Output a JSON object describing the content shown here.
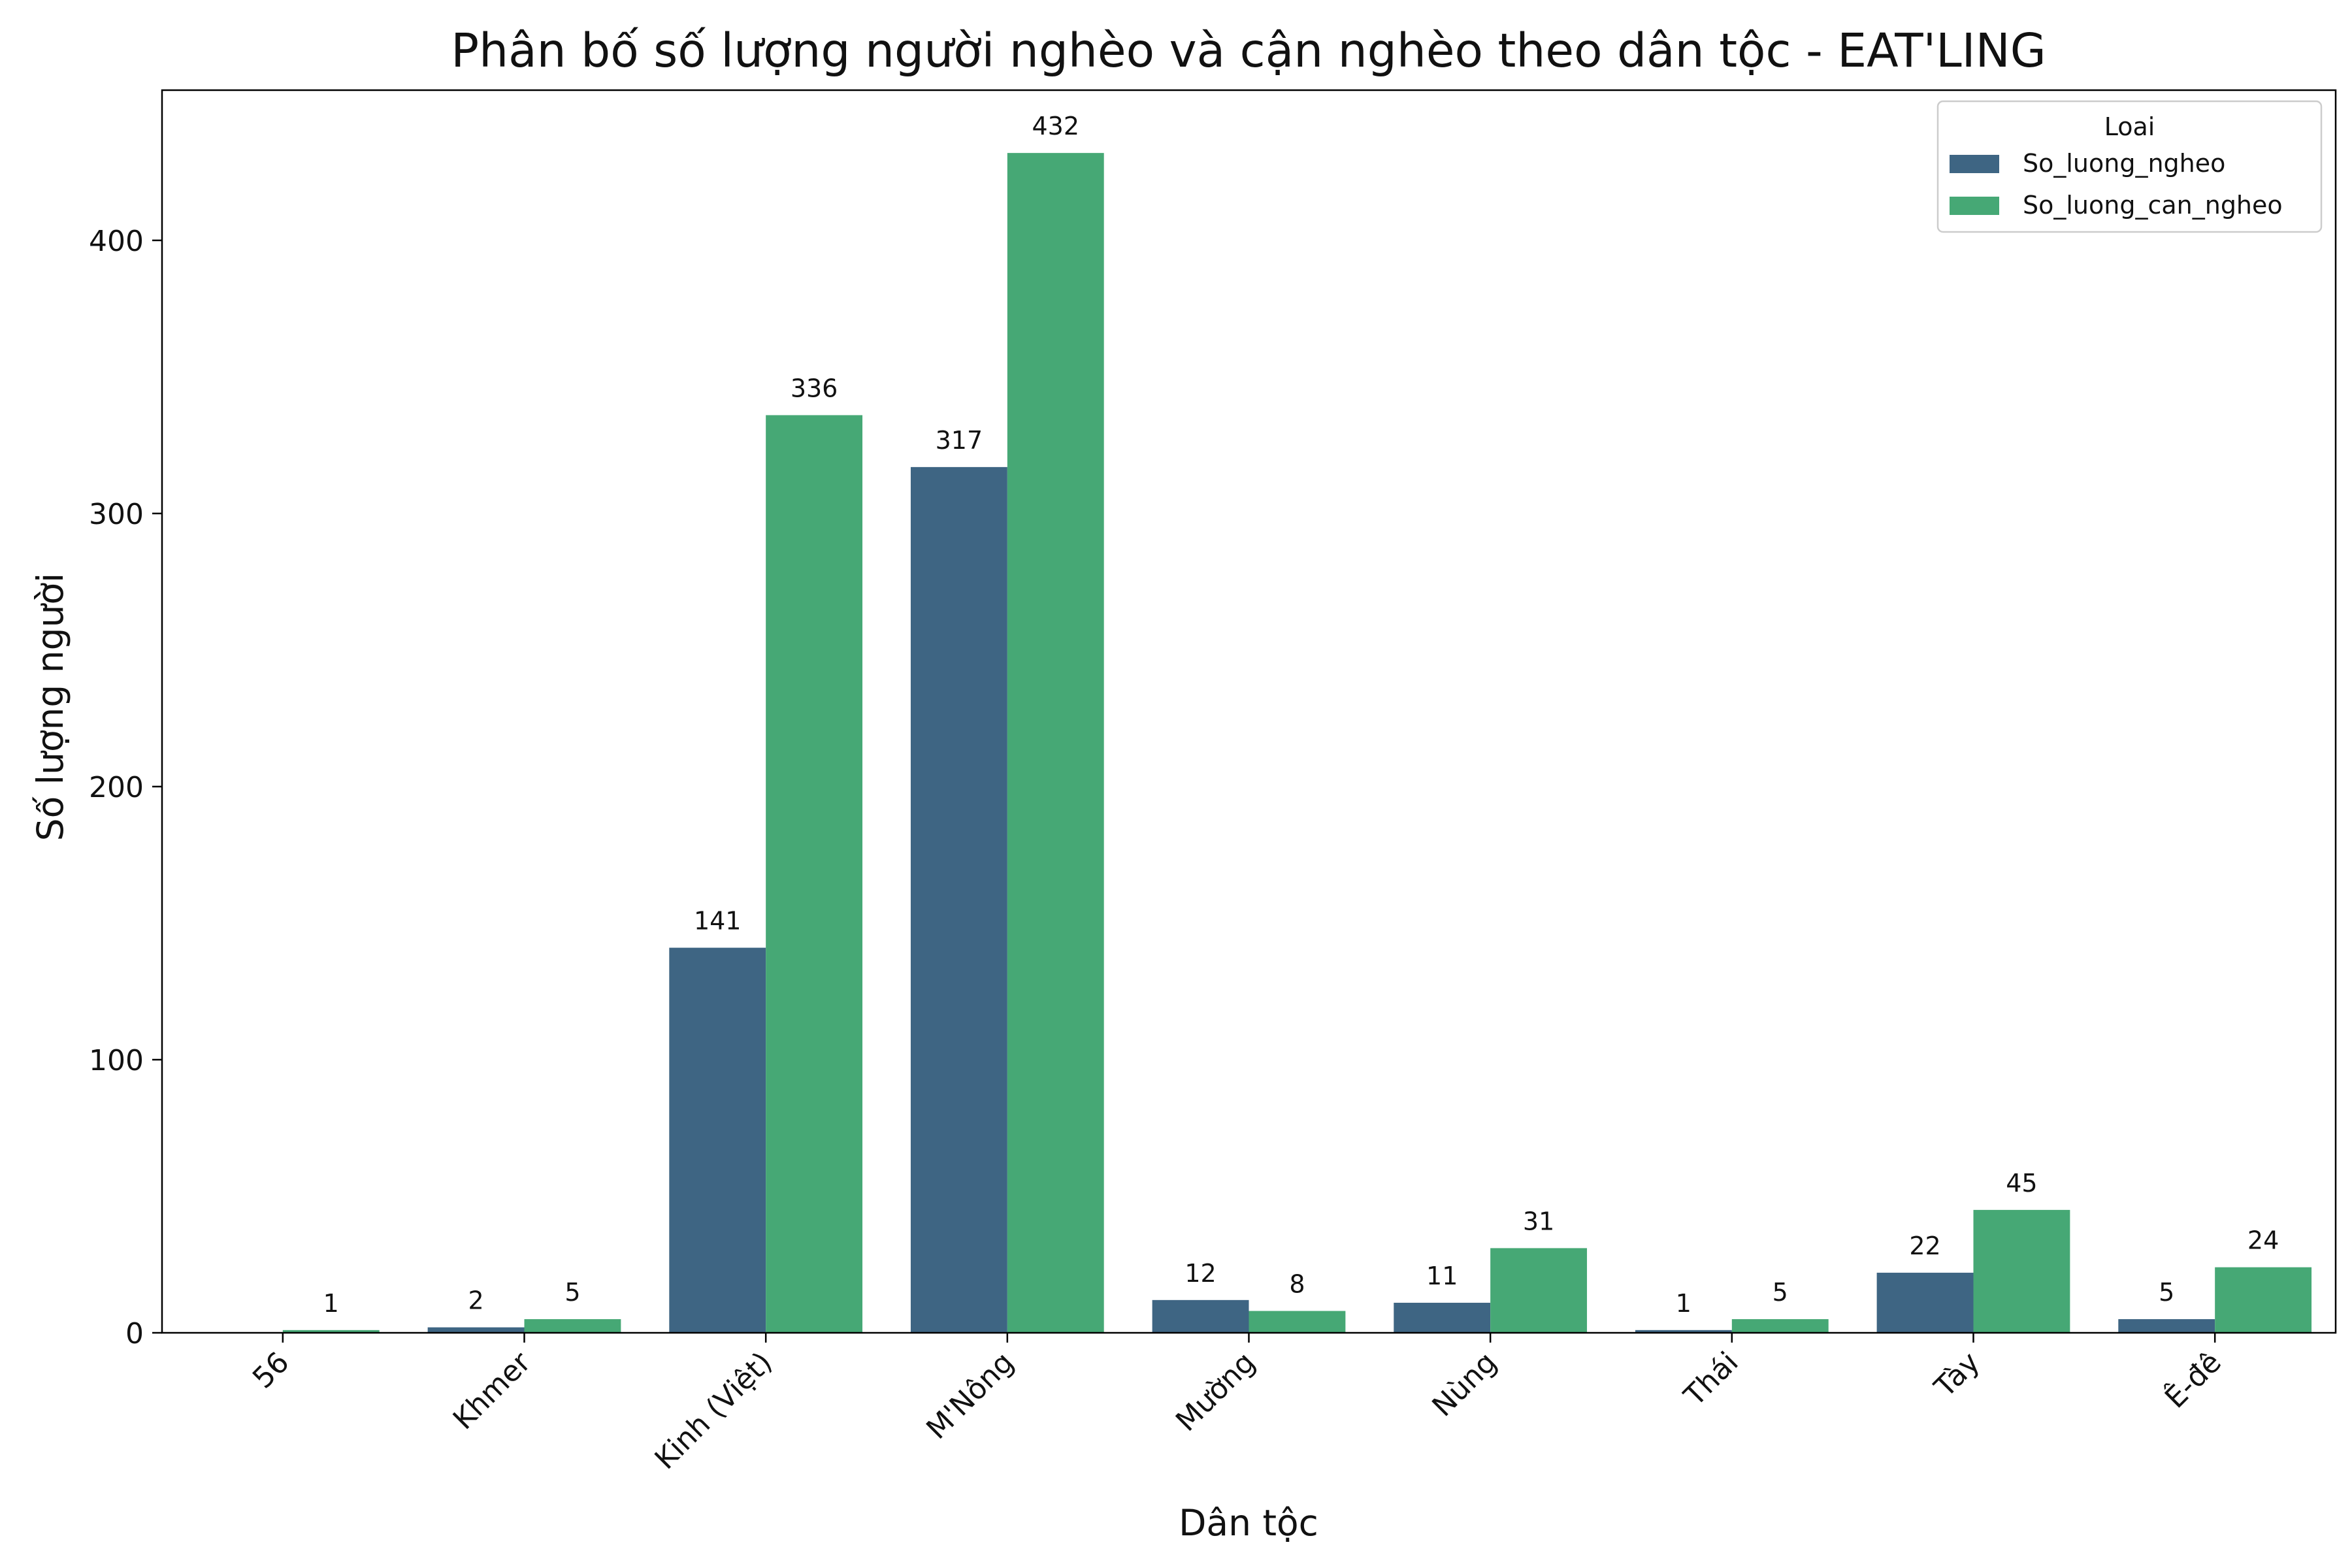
{
  "chart_data": {
    "type": "bar",
    "title": "Phân bố số lượng người nghèo và cận nghèo theo dân tộc - EAT'LING",
    "xlabel": "Dân tộc",
    "ylabel": "Số lượng người",
    "ylim": [
      0,
      455
    ],
    "yticks": [
      0,
      100,
      200,
      300,
      400
    ],
    "categories": [
      "56",
      "Khmer",
      "Kinh (Việt)",
      "M'Nông",
      "Mường",
      "Nùng",
      "Thái",
      "Tày",
      "Ê-đê"
    ],
    "series": [
      {
        "name": "So_luong_ngheo",
        "color": "#3e6583",
        "values": [
          0,
          2,
          141,
          317,
          12,
          11,
          1,
          22,
          5
        ]
      },
      {
        "name": "So_luong_can_ngheo",
        "color": "#46a875",
        "values": [
          1,
          5,
          336,
          432,
          8,
          31,
          5,
          45,
          24
        ]
      }
    ],
    "legend": {
      "title": "Loai",
      "position": "top-right"
    },
    "grid": false
  }
}
